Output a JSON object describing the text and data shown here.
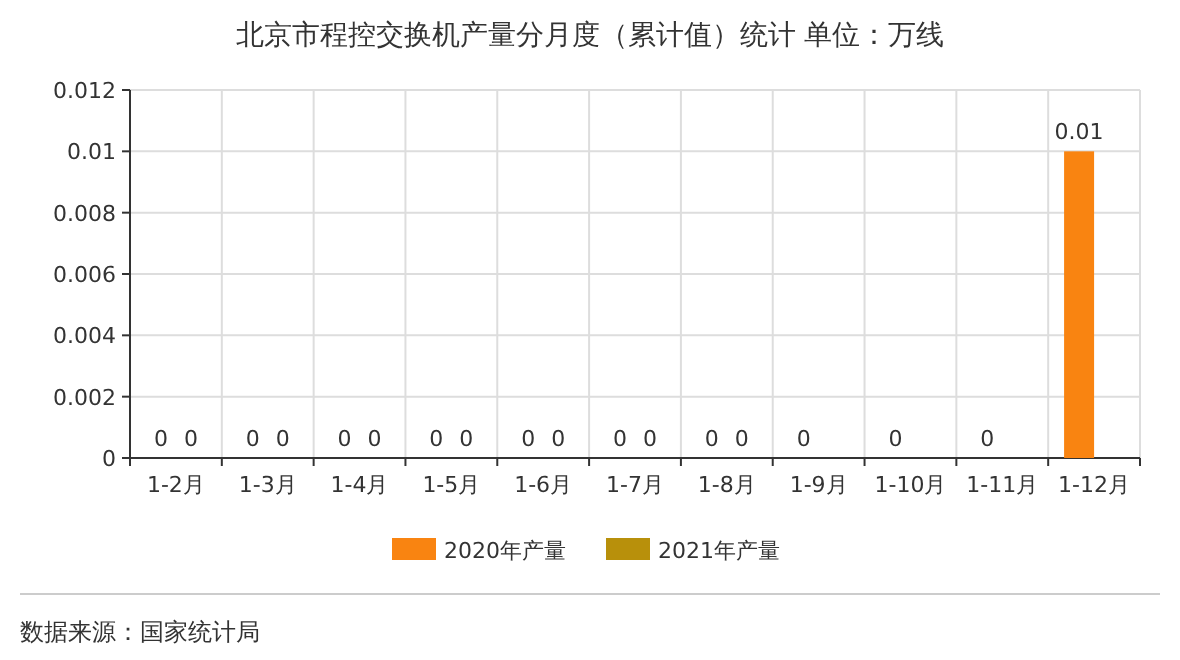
{
  "chart_data": {
    "type": "bar",
    "title": "北京市程控交换机产量分月度（累计值）统计 单位：万线",
    "categories": [
      "1-2月",
      "1-3月",
      "1-4月",
      "1-5月",
      "1-6月",
      "1-7月",
      "1-8月",
      "1-9月",
      "1-10月",
      "1-11月",
      "1-12月"
    ],
    "series": [
      {
        "name": "2020年产量",
        "color": "#f98411",
        "values": [
          0,
          0,
          0,
          0,
          0,
          0,
          0,
          0,
          0,
          0,
          0.01
        ]
      },
      {
        "name": "2021年产量",
        "color": "#b8900b",
        "values": [
          0,
          0,
          0,
          0,
          0,
          0,
          0,
          null,
          null,
          null,
          null
        ]
      }
    ],
    "ylim": [
      0,
      0.012
    ],
    "yticks": [
      0,
      0.002,
      0.004,
      0.006,
      0.008,
      0.01,
      0.012
    ],
    "grid": true,
    "legend": "bottom",
    "data_labels": true,
    "annotations": [
      "数据来源：国家统计局"
    ]
  }
}
